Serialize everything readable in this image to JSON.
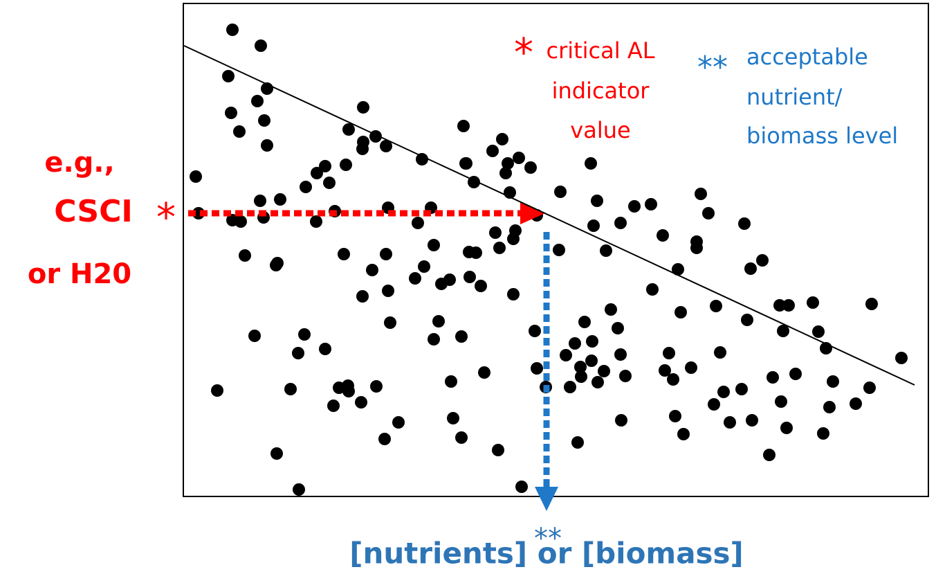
{
  "chart_data": {
    "type": "scatter",
    "x_label": "[nutrients] or [biomass]",
    "x_label_mark": "**",
    "x_label_color": "#2e75b6",
    "y_label_lines": [
      "e.g.,",
      "CSCI",
      "or H20"
    ],
    "y_label_mark": "*",
    "y_label_color": "#ff0000",
    "annotations": [
      {
        "mark": "*",
        "lines": [
          "critical AL",
          "indicator",
          "value"
        ],
        "color": "#ff0000"
      },
      {
        "mark": "**",
        "lines": [
          "acceptable",
          "nutrient/",
          "biomass level"
        ],
        "color": "#1f78c8"
      }
    ],
    "color": "#000000",
    "xlim": [
      0,
      1077
    ],
    "ylim": [
      0,
      712
    ],
    "trend_line": {
      "x": [
        1,
        1057
      ],
      "y": [
        651,
        161
      ]
    },
    "x": [
      71,
      112,
      65,
      121,
      107,
      69,
      117,
      81,
      121,
      18,
      22,
      71,
      83,
      111,
      116,
      140,
      89,
      136,
      134,
      103,
      49,
      135,
      167,
      155,
      166,
      175,
      205,
      217,
      225,
      238,
      239,
      257,
      279,
      291,
      311,
      177,
      193,
      205,
      211,
      192,
      219,
      235,
      232,
      239,
      260,
      260,
      259,
      278,
      293,
      273,
      259,
      293,
      296,
      296,
      299,
      335,
      348,
      339,
      362,
      358,
      345,
      373,
      385,
      369,
      362,
      402,
      387,
      390,
      402,
      405,
      408,
      409,
      420,
      413,
      423,
      414,
      430,
      435,
      447,
      461,
      466,
      469,
      472,
      485,
      502,
      451,
      457,
      477,
      480,
      477,
      455,
      489,
      508,
      511,
      524,
      543,
      545,
      511,
      559,
      553,
      566,
      570,
      574,
      575,
      580,
      590,
      591,
      599,
      598,
      593,
      589,
      611,
      618,
      608,
      628,
      632,
      639,
      632,
      633,
      652,
      676,
      678,
      693,
      702,
      696,
      708,
      711,
      723,
      734,
      719,
      715,
      742,
      742,
      748,
      759,
      770,
      776,
      767,
      781,
      790,
      807,
      815,
      811,
      820,
      837,
      822,
      847,
      852,
      862,
      875,
      864,
      867,
      872,
      885,
      910,
      918,
      929,
      939,
      934,
      925,
      972,
      992,
      995,
      1038
    ],
    "y": [
      674,
      651,
      607,
      589,
      571,
      554,
      543,
      527,
      507,
      462,
      409,
      399,
      397,
      427,
      403,
      429,
      348,
      337,
      334,
      232,
      153,
      62,
      10,
      155,
      207,
      234,
      213,
      131,
      157,
      160,
      152,
      136,
      159,
      83,
      107,
      447,
      467,
      477,
      453,
      397,
      412,
      479,
      350,
      530,
      562,
      512,
      502,
      520,
      506,
      327,
      289,
      350,
      297,
      417,
      251,
      315,
      332,
      395,
      363,
      417,
      487,
      307,
      313,
      253,
      227,
      231,
      166,
      113,
      85,
      535,
      481,
      481,
      454,
      353,
      352,
      317,
      304,
      179,
      499,
      516,
      467,
      481,
      439,
      489,
      475,
      381,
      359,
      372,
      384,
      292,
      67,
      14,
      239,
      185,
      158,
      356,
      440,
      406,
      158,
      204,
      221,
      78,
      187,
      173,
      252,
      196,
      224,
      165,
      427,
      391,
      481,
      355,
      270,
      181,
      243,
      205,
      174,
      395,
      110,
      419,
      422,
      299,
      377,
      207,
      182,
      169,
      116,
      90,
      186,
      266,
      328,
      368,
      359,
      437,
      409,
      275,
      208,
      133,
      151,
      107,
      155,
      255,
      394,
      329,
      341,
      110,
      60,
      172,
      276,
      276,
      137,
      239,
      99,
      177,
      280,
      238,
      214,
      166,
      129,
      91,
      134,
      157,
      278,
      200
    ]
  }
}
